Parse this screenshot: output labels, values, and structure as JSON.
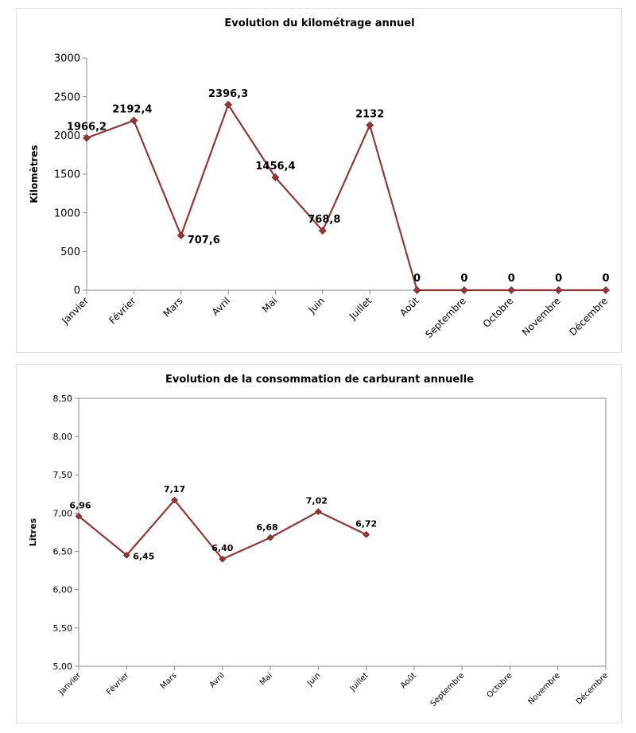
{
  "chart_data": [
    {
      "type": "line",
      "title": "Evolution du kilométrage annuel",
      "xlabel": "",
      "ylabel": "Kilomètres",
      "ylim": [
        0,
        3000
      ],
      "yticks": [
        "0",
        "500",
        "1000",
        "1500",
        "2000",
        "2500",
        "3000"
      ],
      "categories": [
        "Janvier",
        "Février",
        "Mars",
        "Avril",
        "Mai",
        "Juin",
        "Juillet",
        "Août",
        "Septembre",
        "Octobre",
        "Novembre",
        "Décembre"
      ],
      "values": [
        1966.2,
        2192.4,
        707.6,
        2396.3,
        1456.4,
        768.8,
        2132,
        0,
        0,
        0,
        0,
        0
      ],
      "data_labels": [
        "1966,2",
        "2192,4",
        "707,6",
        "2396,3",
        "1456,4",
        "768,8",
        "2132",
        "0",
        "0",
        "0",
        "0",
        "0"
      ],
      "grid": false,
      "legend": "none",
      "color": "#953735"
    },
    {
      "type": "line",
      "title": "Evolution de la consommation de carburant annuelle",
      "xlabel": "",
      "ylabel": "Litres",
      "ylim": [
        5.0,
        8.5
      ],
      "yticks": [
        "5,00",
        "5,50",
        "6,00",
        "6,50",
        "7,00",
        "7,50",
        "8,00",
        "8,50"
      ],
      "categories": [
        "Janvier",
        "Février",
        "Mars",
        "Avril",
        "Mai",
        "Juin",
        "Juillet",
        "Août",
        "Septembre",
        "Octobre",
        "Novembre",
        "Décembre"
      ],
      "values": [
        6.96,
        6.45,
        7.17,
        6.4,
        6.68,
        7.02,
        6.72,
        null,
        null,
        null,
        null,
        null
      ],
      "data_labels": [
        "6,96",
        "6,45",
        "7,17",
        "6,40",
        "6,68",
        "7,02",
        "6,72",
        "",
        "",
        "",
        "",
        ""
      ],
      "grid": false,
      "legend": "none",
      "color": "#953735"
    }
  ]
}
